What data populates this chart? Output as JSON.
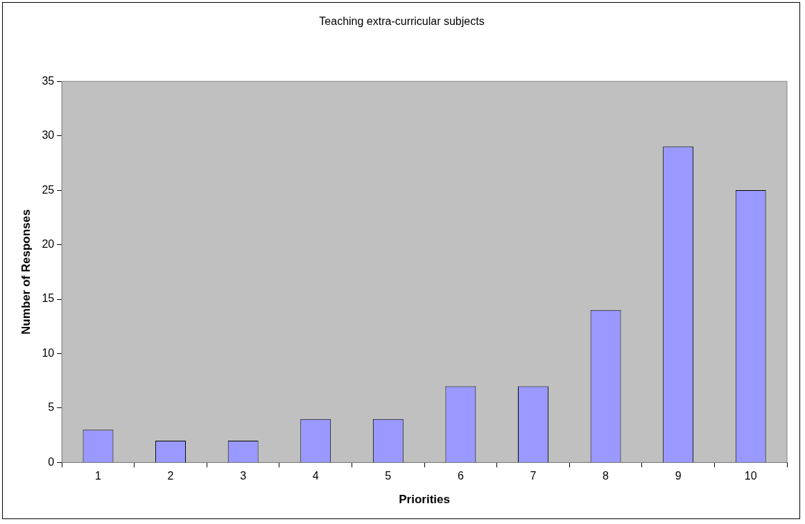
{
  "chart_data": {
    "type": "bar",
    "title": "Teaching extra-curricular subjects",
    "xlabel": "Priorities",
    "ylabel": "Number of Responses",
    "categories": [
      "1",
      "2",
      "3",
      "4",
      "5",
      "6",
      "7",
      "8",
      "9",
      "10"
    ],
    "values": [
      3,
      2,
      2,
      4,
      4,
      7,
      7,
      14,
      29,
      25
    ],
    "color": "#9999ff",
    "ylim": [
      0,
      35
    ],
    "yticks": [
      0,
      5,
      10,
      15,
      20,
      25,
      30,
      35
    ],
    "legend": false
  }
}
